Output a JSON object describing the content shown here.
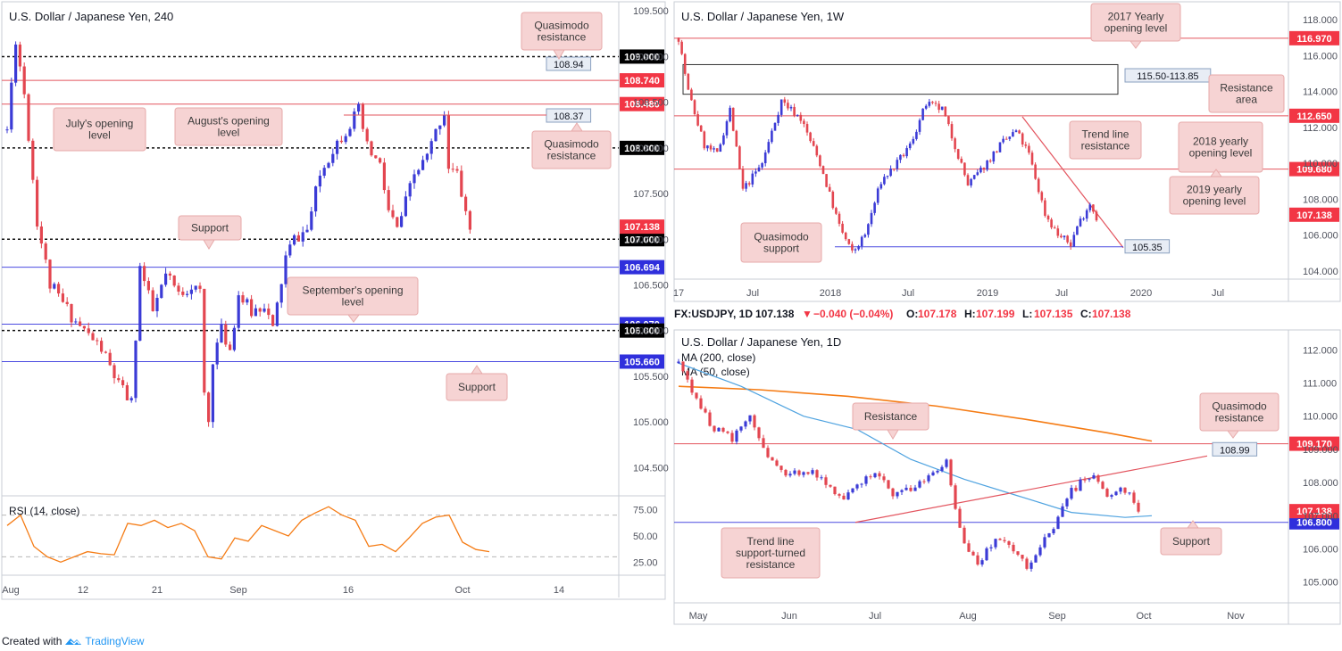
{
  "footer": {
    "created_with": "Created with",
    "brand": "TradingView"
  },
  "colors": {
    "bull": "#3b3bd6",
    "bear": "#e34650",
    "level_red": "#e3545e",
    "level_blue": "#4a4ae0",
    "dashed": "#111111",
    "ma200": "#f57c15",
    "ma50": "#4fa3e0",
    "rsi": "#f57c15",
    "note_bg": "#f6d3d3",
    "note_border": "#e7aaaa"
  },
  "chart_data": [
    {
      "id": "h4",
      "type": "candlestick",
      "title": "U.S. Dollar / Japanese Yen, 240",
      "ylim": [
        104.2,
        109.6
      ],
      "y_ticks": [
        "109.500",
        "109.000",
        "108.500",
        "108.000",
        "107.500",
        "107.000",
        "106.500",
        "106.000",
        "105.500",
        "105.000",
        "104.500"
      ],
      "x_ticks": [
        "Aug",
        "12",
        "21",
        "Sep",
        "16",
        "Oct",
        "14"
      ],
      "price_path": [
        [
          0,
          108.2
        ],
        [
          2,
          109.2
        ],
        [
          4,
          108.6
        ],
        [
          7,
          107.2
        ],
        [
          10,
          106.5
        ],
        [
          16,
          106.1
        ],
        [
          22,
          105.8
        ],
        [
          26,
          105.4
        ],
        [
          29,
          105.2
        ],
        [
          31,
          106.7
        ],
        [
          34,
          106.2
        ],
        [
          37,
          106.6
        ],
        [
          40,
          106.4
        ],
        [
          43,
          106.5
        ],
        [
          45,
          106.4
        ],
        [
          46,
          105.3
        ],
        [
          47,
          105.0
        ],
        [
          48,
          105.7
        ],
        [
          50,
          106.0
        ],
        [
          52,
          105.8
        ],
        [
          54,
          106.4
        ],
        [
          57,
          106.2
        ],
        [
          60,
          106.3
        ],
        [
          62,
          106.0
        ],
        [
          65,
          106.8
        ],
        [
          67,
          107.0
        ],
        [
          70,
          107.1
        ],
        [
          73,
          107.7
        ],
        [
          76,
          108.0
        ],
        [
          79,
          108.2
        ],
        [
          82,
          108.4
        ],
        [
          84,
          108.0
        ],
        [
          87,
          107.8
        ],
        [
          89,
          107.3
        ],
        [
          91,
          107.1
        ],
        [
          93,
          107.4
        ],
        [
          95,
          107.7
        ],
        [
          98,
          107.9
        ],
        [
          101,
          108.3
        ],
        [
          102,
          108.4
        ],
        [
          103,
          107.8
        ],
        [
          105,
          107.7
        ],
        [
          107,
          107.3
        ],
        [
          108,
          107.1
        ]
      ],
      "levels": [
        {
          "price": "109.000",
          "style": "dashed",
          "tag": "109.000"
        },
        {
          "price": "108.740",
          "style": "red",
          "tag": "108.740"
        },
        {
          "price": "108.480",
          "style": "red",
          "tag": "108.480"
        },
        {
          "price": "108.000",
          "style": "dashed",
          "tag": "108.000"
        },
        {
          "price": "107.000",
          "style": "dashed",
          "tag": "107.000"
        },
        {
          "price": "106.694",
          "style": "blue",
          "tag": "106.694"
        },
        {
          "price": "106.070",
          "style": "blue",
          "tag": "106.070"
        },
        {
          "price": "106.000",
          "style": "dashed",
          "tag": "106.000"
        },
        {
          "price": "105.660",
          "style": "blue",
          "tag": "105.660"
        }
      ],
      "last_price": "107.138",
      "box_labels": [
        "108.94",
        "108.37"
      ],
      "notes": [
        "Quasimodo resistance",
        "July's opening level",
        "August's opening level",
        "Quasimodo resistance",
        "Support",
        "September's opening level",
        "Support"
      ],
      "rsi": {
        "label": "RSI (14, close)",
        "y_ticks": [
          "75.00",
          "50.00",
          "25.00"
        ],
        "values": [
          60,
          70,
          40,
          30,
          25,
          30,
          35,
          33,
          32,
          62,
          60,
          65,
          58,
          62,
          55,
          30,
          28,
          48,
          45,
          60,
          55,
          50,
          65,
          72,
          78,
          70,
          65,
          40,
          42,
          35,
          48,
          62,
          68,
          70,
          44,
          37,
          35
        ]
      }
    },
    {
      "id": "weekly",
      "type": "candlestick",
      "title": "U.S. Dollar / Japanese Yen, 1W",
      "ylim": [
        103.6,
        119.0
      ],
      "y_ticks": [
        "118.000",
        "116.000",
        "114.000",
        "112.000",
        "110.000",
        "108.000",
        "106.000",
        "104.000"
      ],
      "x_ticks": [
        "17",
        "Jul",
        "2018",
        "Jul",
        "2019",
        "Jul",
        "2020",
        "Jul"
      ],
      "price_path": [
        [
          0,
          117
        ],
        [
          3,
          114
        ],
        [
          8,
          111
        ],
        [
          12,
          110.5
        ],
        [
          16,
          113
        ],
        [
          20,
          108.5
        ],
        [
          26,
          110
        ],
        [
          32,
          113.5
        ],
        [
          38,
          112.5
        ],
        [
          44,
          110
        ],
        [
          50,
          106.5
        ],
        [
          54,
          105
        ],
        [
          58,
          106
        ],
        [
          63,
          109
        ],
        [
          68,
          110
        ],
        [
          72,
          111
        ],
        [
          77,
          113.3
        ],
        [
          82,
          113
        ],
        [
          86,
          111
        ],
        [
          90,
          108.8
        ],
        [
          94,
          109.6
        ],
        [
          100,
          111
        ],
        [
          105,
          111.8
        ],
        [
          109,
          110.5
        ],
        [
          114,
          107.2
        ],
        [
          118,
          106
        ],
        [
          122,
          105.5
        ],
        [
          124,
          106.5
        ],
        [
          128,
          107.8
        ],
        [
          130,
          107.0
        ]
      ],
      "levels": [
        {
          "price": "116.970",
          "style": "red",
          "tag": "116.970"
        },
        {
          "price": "112.650",
          "style": "red",
          "tag": "112.650"
        },
        {
          "price": "109.680",
          "style": "red",
          "tag": "109.680"
        }
      ],
      "last_price": "107.138",
      "box_labels": [
        "115.50-113.85",
        "105.35"
      ],
      "notes": [
        "2017 Yearly opening level",
        "Resistance area",
        "Trend line resistance",
        "2018 yearly opening level",
        "2019 yearly opening level",
        "Quasimodo support"
      ]
    },
    {
      "id": "daily",
      "type": "candlestick",
      "title": "U.S. Dollar / Japanese Yen, 1D",
      "symbol": "FX:USDJPY, 1D",
      "ohlc": {
        "price": "107.138",
        "change": "−0.040 (−0.04%)",
        "o_label": "O:",
        "o": "107.178",
        "h_label": "H:",
        "h": "107.199",
        "l_label": "L:",
        "l": "107.135",
        "c_label": "C:",
        "c": "107.138"
      },
      "ma_labels": [
        "MA (200, close)",
        "MA (50, close)"
      ],
      "ylim": [
        104.4,
        112.6
      ],
      "y_ticks": [
        "112.000",
        "111.000",
        "110.000",
        "109.000",
        "108.000",
        "107.000",
        "106.000",
        "105.000"
      ],
      "x_ticks": [
        "May",
        "Jun",
        "Jul",
        "Aug",
        "Sep",
        "Oct",
        "Nov"
      ],
      "price_path": [
        [
          0,
          111.6
        ],
        [
          4,
          110.5
        ],
        [
          8,
          109.6
        ],
        [
          12,
          109.3
        ],
        [
          16,
          110.0
        ],
        [
          20,
          108.8
        ],
        [
          24,
          108.1
        ],
        [
          28,
          108.4
        ],
        [
          32,
          108.2
        ],
        [
          36,
          107.5
        ],
        [
          40,
          107.9
        ],
        [
          44,
          108.4
        ],
        [
          48,
          107.7
        ],
        [
          52,
          107.8
        ],
        [
          56,
          108.2
        ],
        [
          60,
          108.7
        ],
        [
          62,
          107.2
        ],
        [
          64,
          106.2
        ],
        [
          67,
          105.6
        ],
        [
          71,
          106.3
        ],
        [
          74,
          106.2
        ],
        [
          78,
          105.4
        ],
        [
          81,
          106.1
        ],
        [
          84,
          106.6
        ],
        [
          87,
          107.6
        ],
        [
          90,
          108.0
        ],
        [
          93,
          108.2
        ],
        [
          96,
          107.6
        ],
        [
          99,
          107.8
        ],
        [
          101,
          107.6
        ],
        [
          103,
          107.15
        ]
      ],
      "levels": [
        {
          "price": "109.170",
          "style": "red",
          "tag": "109.170"
        },
        {
          "price": "106.800",
          "style": "blue",
          "tag": "106.800"
        }
      ],
      "last_price": "107.138",
      "box_labels": [
        "108.99"
      ],
      "notes": [
        "Resistance",
        "Quasimodo resistance",
        "Trend line support-turned resistance",
        "Support"
      ]
    }
  ]
}
